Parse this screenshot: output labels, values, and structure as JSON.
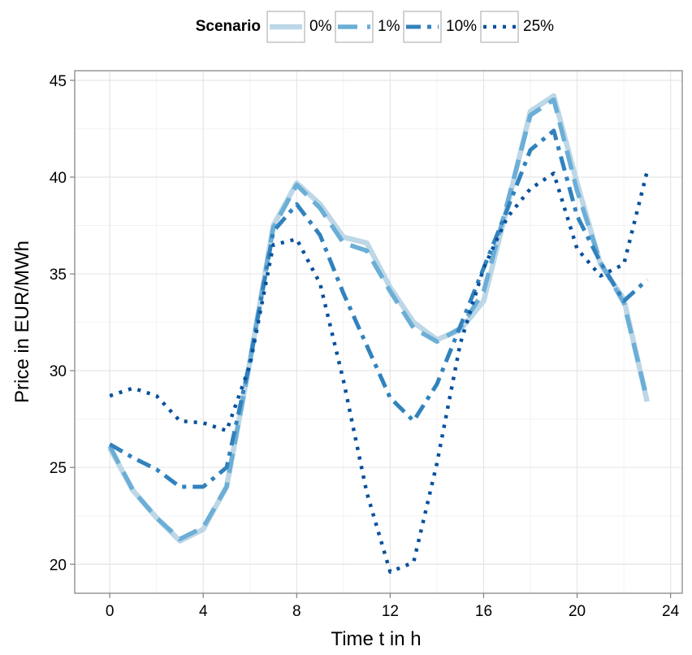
{
  "chart_data": {
    "type": "line",
    "xlabel": "Time t in h",
    "ylabel": "Price in EUR/MWh",
    "xlim": [
      -1.5,
      24.5
    ],
    "ylim": [
      18.5,
      45.5
    ],
    "x_ticks": [
      0,
      4,
      8,
      12,
      16,
      20,
      24
    ],
    "y_ticks": [
      20,
      25,
      30,
      35,
      40,
      45
    ],
    "grid": true,
    "legend": {
      "title": "Scenario",
      "placement": "top"
    },
    "x": [
      0,
      1,
      2,
      3,
      4,
      5,
      6,
      7,
      8,
      9,
      10,
      11,
      12,
      13,
      14,
      15,
      16,
      17,
      18,
      19,
      20,
      21,
      22,
      23
    ],
    "series": [
      {
        "name": "0%",
        "color": "#bdd7e7",
        "style": "solid",
        "values": [
          26.0,
          23.8,
          22.4,
          21.2,
          21.8,
          24.0,
          30.5,
          37.5,
          39.7,
          38.6,
          36.9,
          36.6,
          34.3,
          32.5,
          31.6,
          32.1,
          33.6,
          38.4,
          43.4,
          44.2,
          39.7,
          35.5,
          33.7,
          28.4
        ]
      },
      {
        "name": "1%",
        "color": "#6baed6",
        "style": "dashed",
        "values": [
          26.1,
          23.8,
          22.4,
          21.3,
          21.9,
          24.0,
          30.5,
          37.4,
          39.6,
          38.4,
          36.6,
          36.2,
          34.1,
          32.2,
          31.5,
          32.2,
          34.1,
          38.6,
          43.2,
          44.0,
          39.3,
          35.6,
          33.5,
          28.5
        ]
      },
      {
        "name": "10%",
        "color": "#3182bd",
        "style": "dashdot",
        "values": [
          26.2,
          25.5,
          24.9,
          24.0,
          24.0,
          25.0,
          30.5,
          37.2,
          38.6,
          37.0,
          34.0,
          31.3,
          28.6,
          27.4,
          29.3,
          32.3,
          35.3,
          38.3,
          41.4,
          42.4,
          38.0,
          35.6,
          33.6,
          34.7
        ]
      },
      {
        "name": "25%",
        "color": "#08519c",
        "style": "dotted",
        "values": [
          28.7,
          29.1,
          28.7,
          27.4,
          27.3,
          26.9,
          30.3,
          36.5,
          36.8,
          34.5,
          29.5,
          23.7,
          19.6,
          20.1,
          25.2,
          31.4,
          35.3,
          37.9,
          39.4,
          40.2,
          36.3,
          34.9,
          35.5,
          40.3
        ]
      }
    ]
  }
}
